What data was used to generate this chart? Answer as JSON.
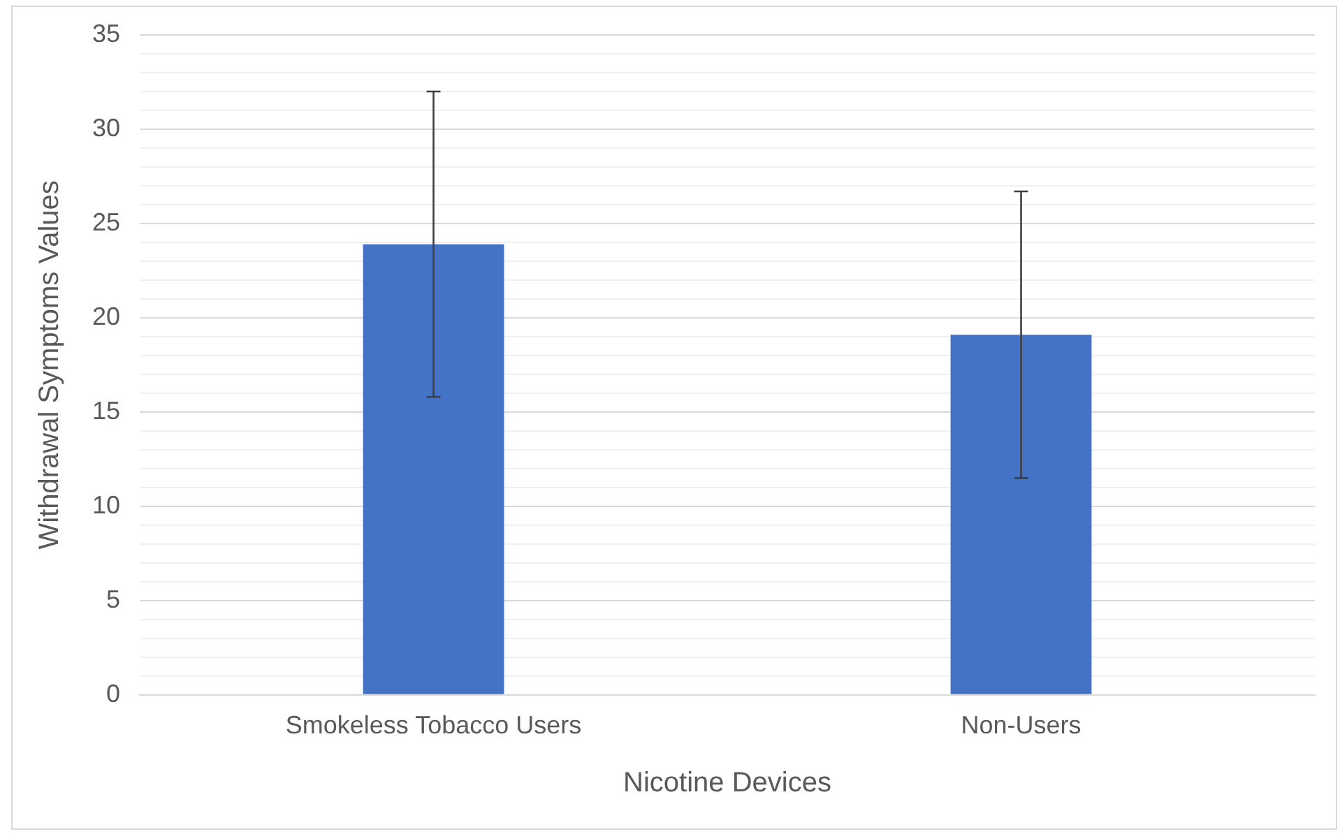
{
  "chart_data": {
    "type": "bar",
    "xlabel": "Nicotine Devices",
    "ylabel": "Withdrawal Symptoms Values",
    "categories": [
      "Smokeless Tobacco Users",
      "Non-Users"
    ],
    "values": [
      23.9,
      19.1
    ],
    "errors": [
      8.1,
      7.6
    ],
    "color": "#4472c4",
    "ylim": [
      0,
      35
    ],
    "yticks": [
      0,
      {
        "value": 1,
        "label": null
      },
      {
        "value": 2,
        "label": null
      },
      {
        "value": 3,
        "label": null
      },
      {
        "value": 4,
        "label": null
      },
      5,
      {
        "value": 6,
        "label": null
      },
      {
        "value": 7,
        "label": null
      },
      {
        "value": 8,
        "label": null
      },
      {
        "value": 9,
        "label": null
      },
      10,
      {
        "value": 11,
        "label": null
      },
      {
        "value": 12,
        "label": null
      },
      {
        "value": 13,
        "label": null
      },
      {
        "value": 14,
        "label": null
      },
      15,
      {
        "value": 16,
        "label": null
      },
      {
        "value": 17,
        "label": null
      },
      {
        "value": 18,
        "label": null
      },
      {
        "value": 19,
        "label": null
      },
      20,
      {
        "value": 21,
        "label": null
      },
      {
        "value": 22,
        "label": null
      },
      {
        "value": 23,
        "label": null
      },
      {
        "value": 24,
        "label": null
      },
      25,
      {
        "value": 26,
        "label": null
      },
      {
        "value": 27,
        "label": null
      },
      {
        "value": 28,
        "label": null
      },
      {
        "value": 29,
        "label": null
      },
      30,
      {
        "value": 31,
        "label": null
      },
      {
        "value": 32,
        "label": null
      },
      {
        "value": 33,
        "label": null
      },
      {
        "value": 34,
        "label": null
      },
      35
    ],
    "grid": "y",
    "legend": false
  }
}
